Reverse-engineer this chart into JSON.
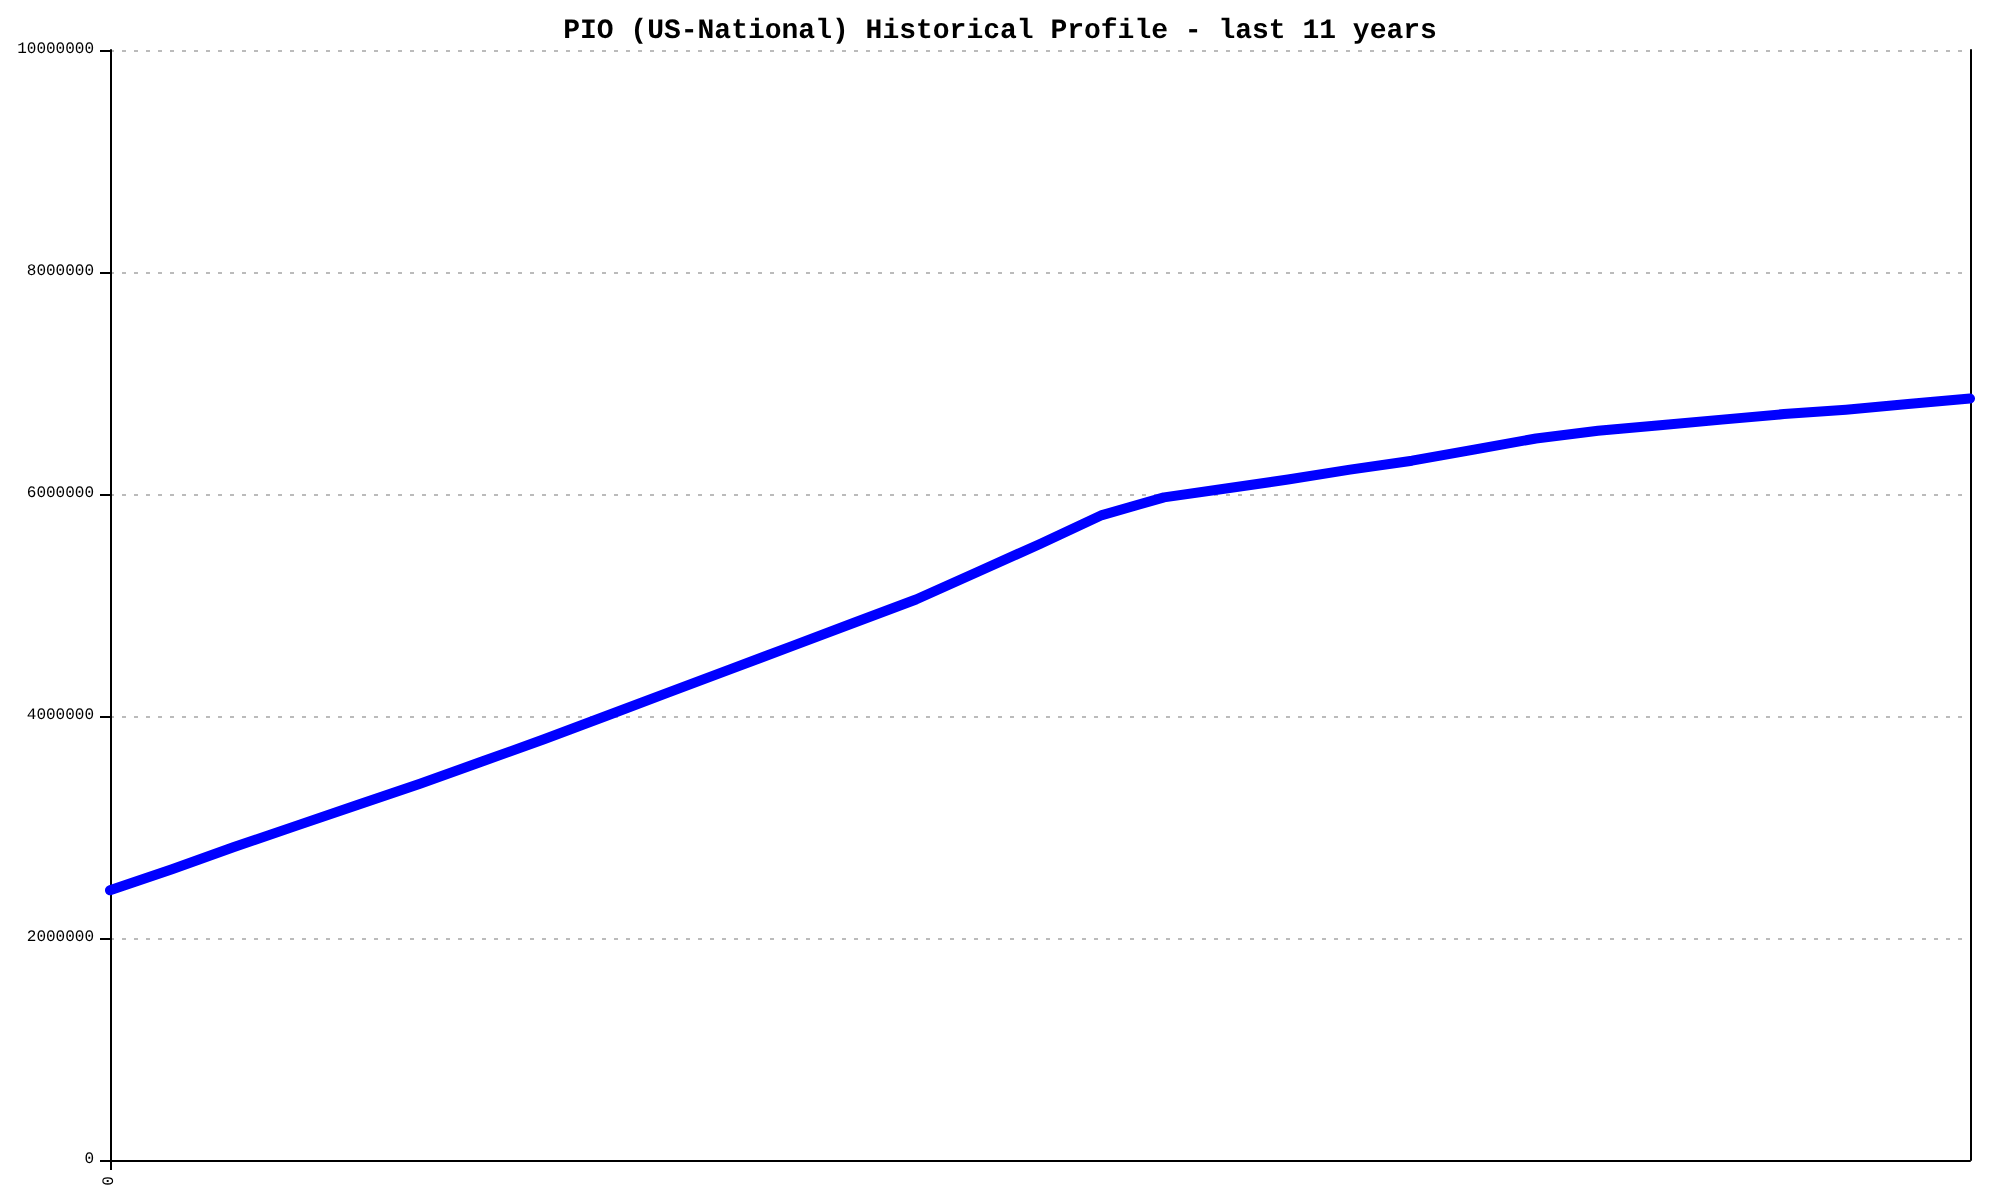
{
  "chart_data": {
    "type": "line",
    "title": "PIO (US-National) Historical Profile - last 11 years",
    "categories": [
      "0",
      null,
      null,
      null,
      null,
      null,
      null,
      null,
      null,
      null,
      null,
      null,
      null,
      null,
      null,
      null,
      null,
      null,
      null,
      null,
      null,
      null,
      null,
      null,
      null,
      null,
      null,
      null,
      null,
      null,
      null
    ],
    "series": [
      {
        "color": "#0000ff",
        "values": [
          2430000,
          2620000,
          2820000,
          3010000,
          3200000,
          3390000,
          3590000,
          3790000,
          4000000,
          4210000,
          4420000,
          4630000,
          4840000,
          5050000,
          5300000,
          5550000,
          5810000,
          5970000,
          6050000,
          6130000,
          6220000,
          6300000,
          6400000,
          6500000,
          6570000,
          6620000,
          6670000,
          6720000,
          6760000,
          6810000,
          6860000
        ]
      }
    ],
    "ylim": [
      0,
      10000000
    ],
    "yticks": [
      0,
      2000000,
      4000000,
      6000000,
      8000000,
      10000000
    ],
    "grid": "y",
    "marker": "none",
    "line_style": "solid"
  }
}
